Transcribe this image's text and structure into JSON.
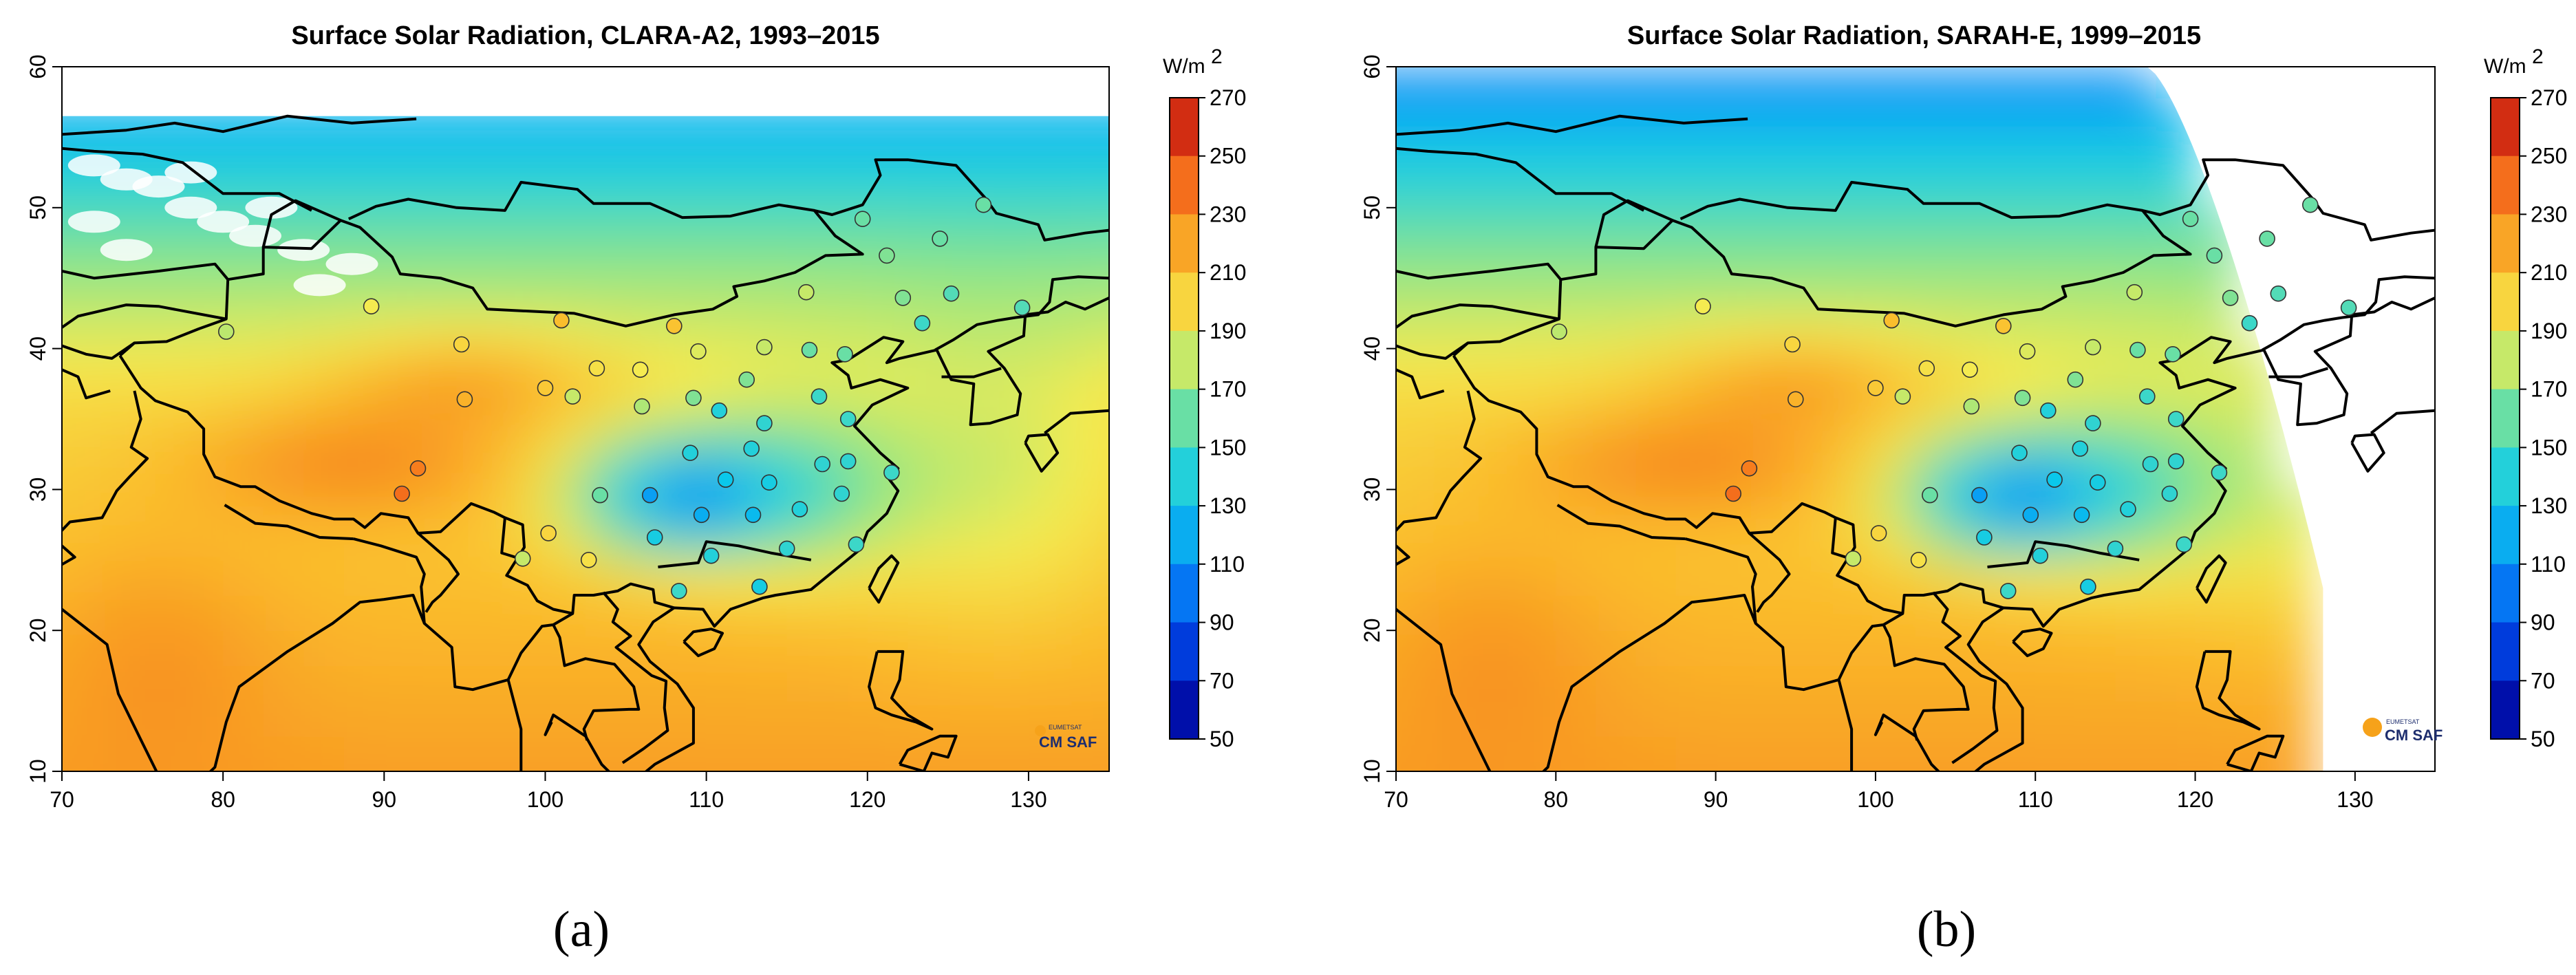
{
  "chart_data": [
    {
      "type": "heatmap",
      "panel_label": "(a)",
      "title": "Surface Solar Radiation, CLARA-A2, 1993–2015",
      "xlabel": "",
      "ylabel": "",
      "xlim": [
        70,
        135
      ],
      "ylim": [
        10,
        60
      ],
      "x_ticks": [
        "70",
        "80",
        "90",
        "100",
        "110",
        "120",
        "130"
      ],
      "y_ticks": [
        "10",
        "20",
        "30",
        "40",
        "50",
        "60"
      ],
      "data_extent": {
        "lat_max": 56.5,
        "lon_max": 135
      },
      "colorbar": {
        "unit": "W/m",
        "unit_superscript": "2",
        "ticks": [
          "270",
          "250",
          "230",
          "210",
          "190",
          "170",
          "150",
          "130",
          "110",
          "90",
          "70",
          "50"
        ],
        "range": [
          50,
          270
        ]
      },
      "logo": {
        "small_text": "EUMETSAT",
        "text": "CM SAF"
      }
    },
    {
      "type": "heatmap",
      "panel_label": "(b)",
      "title": "Surface Solar Radiation, SARAH-E, 1999–2015",
      "xlabel": "",
      "ylabel": "",
      "xlim": [
        70,
        135
      ],
      "ylim": [
        10,
        60
      ],
      "x_ticks": [
        "70",
        "80",
        "90",
        "100",
        "110",
        "120",
        "130"
      ],
      "y_ticks": [
        "10",
        "20",
        "30",
        "40",
        "50",
        "60"
      ],
      "data_extent": {
        "disk_edge": "curved limb from ~(117,60) to ~(128,23); data ends at lon 128 south of 23"
      },
      "colorbar": {
        "unit": "W/m",
        "unit_superscript": "2",
        "ticks": [
          "270",
          "250",
          "230",
          "210",
          "190",
          "170",
          "150",
          "130",
          "110",
          "90",
          "70",
          "50"
        ],
        "range": [
          50,
          270
        ]
      },
      "logo": {
        "small_text": "EUMETSAT",
        "text": "CM SAF"
      }
    }
  ],
  "stations": [
    {
      "lon": 80.2,
      "lat": 41.2,
      "a": 178,
      "b": 178
    },
    {
      "lon": 89.2,
      "lat": 43.0,
      "a": 190,
      "b": 190
    },
    {
      "lon": 94.8,
      "lat": 40.3,
      "a": 200,
      "b": 200
    },
    {
      "lon": 95.0,
      "lat": 36.4,
      "a": 215,
      "b": 215
    },
    {
      "lon": 101.0,
      "lat": 42.0,
      "a": 210,
      "b": 210
    },
    {
      "lon": 100.0,
      "lat": 37.2,
      "a": 205,
      "b": 205
    },
    {
      "lon": 101.7,
      "lat": 36.6,
      "a": 180,
      "b": 180
    },
    {
      "lon": 103.2,
      "lat": 38.6,
      "a": 195,
      "b": 195
    },
    {
      "lon": 105.9,
      "lat": 38.5,
      "a": 190,
      "b": 190
    },
    {
      "lon": 108.0,
      "lat": 41.6,
      "a": 208,
      "b": 208
    },
    {
      "lon": 109.5,
      "lat": 39.8,
      "a": 185,
      "b": 185
    },
    {
      "lon": 113.6,
      "lat": 40.1,
      "a": 180,
      "b": 180
    },
    {
      "lon": 116.4,
      "lat": 39.9,
      "a": 160,
      "b": 160
    },
    {
      "lon": 118.6,
      "lat": 39.6,
      "a": 160,
      "b": 160
    },
    {
      "lon": 116.2,
      "lat": 44.0,
      "a": 180,
      "b": 180
    },
    {
      "lon": 119.7,
      "lat": 49.2,
      "a": 160,
      "b": 160
    },
    {
      "lon": 121.2,
      "lat": 46.6,
      "a": 165,
      "b": 160
    },
    {
      "lon": 124.5,
      "lat": 47.8,
      "a": 160,
      "b": 160
    },
    {
      "lon": 122.2,
      "lat": 43.6,
      "a": 165,
      "b": 165
    },
    {
      "lon": 125.2,
      "lat": 43.9,
      "a": 155,
      "b": 155
    },
    {
      "lon": 123.4,
      "lat": 41.8,
      "a": 150,
      "b": 150
    },
    {
      "lon": 127.2,
      "lat": 50.2,
      "a": 160,
      "b": 160
    },
    {
      "lon": 129.6,
      "lat": 42.9,
      "a": 155,
      "b": 155
    },
    {
      "lon": 109.2,
      "lat": 36.5,
      "a": 165,
      "b": 165
    },
    {
      "lon": 106.0,
      "lat": 35.9,
      "a": 175,
      "b": 175
    },
    {
      "lon": 112.5,
      "lat": 37.8,
      "a": 165,
      "b": 165
    },
    {
      "lon": 113.6,
      "lat": 34.7,
      "a": 145,
      "b": 145
    },
    {
      "lon": 117.0,
      "lat": 36.6,
      "a": 150,
      "b": 150
    },
    {
      "lon": 118.8,
      "lat": 35.0,
      "a": 150,
      "b": 150
    },
    {
      "lon": 110.8,
      "lat": 35.6,
      "a": 140,
      "b": 140
    },
    {
      "lon": 109.0,
      "lat": 32.6,
      "a": 140,
      "b": 140
    },
    {
      "lon": 112.8,
      "lat": 32.9,
      "a": 140,
      "b": 140
    },
    {
      "lon": 117.2,
      "lat": 31.8,
      "a": 145,
      "b": 145
    },
    {
      "lon": 118.8,
      "lat": 32.0,
      "a": 145,
      "b": 145
    },
    {
      "lon": 121.5,
      "lat": 31.2,
      "a": 150,
      "b": 150
    },
    {
      "lon": 103.4,
      "lat": 29.6,
      "a": 160,
      "b": 160
    },
    {
      "lon": 106.5,
      "lat": 29.6,
      "a": 115,
      "b": 115
    },
    {
      "lon": 106.8,
      "lat": 26.6,
      "a": 135,
      "b": 135
    },
    {
      "lon": 109.7,
      "lat": 28.2,
      "a": 120,
      "b": 120
    },
    {
      "lon": 111.2,
      "lat": 30.7,
      "a": 130,
      "b": 130
    },
    {
      "lon": 112.9,
      "lat": 28.2,
      "a": 125,
      "b": 125
    },
    {
      "lon": 113.9,
      "lat": 30.5,
      "a": 135,
      "b": 135
    },
    {
      "lon": 115.8,
      "lat": 28.6,
      "a": 140,
      "b": 140
    },
    {
      "lon": 118.4,
      "lat": 29.7,
      "a": 145,
      "b": 145
    },
    {
      "lon": 119.3,
      "lat": 26.1,
      "a": 150,
      "b": 150
    },
    {
      "lon": 115.0,
      "lat": 25.8,
      "a": 145,
      "b": 145
    },
    {
      "lon": 110.3,
      "lat": 25.3,
      "a": 140,
      "b": 140
    },
    {
      "lon": 113.3,
      "lat": 23.1,
      "a": 135,
      "b": 135
    },
    {
      "lon": 108.3,
      "lat": 22.8,
      "a": 150,
      "b": 150
    },
    {
      "lon": 102.7,
      "lat": 25.0,
      "a": 195,
      "b": 195
    },
    {
      "lon": 100.2,
      "lat": 26.9,
      "a": 200,
      "b": 200
    },
    {
      "lon": 91.1,
      "lat": 29.7,
      "a": 240,
      "b": 240
    },
    {
      "lon": 92.1,
      "lat": 31.5,
      "a": 235,
      "b": 235
    },
    {
      "lon": 98.6,
      "lat": 25.1,
      "a": 180,
      "b": 180
    }
  ]
}
